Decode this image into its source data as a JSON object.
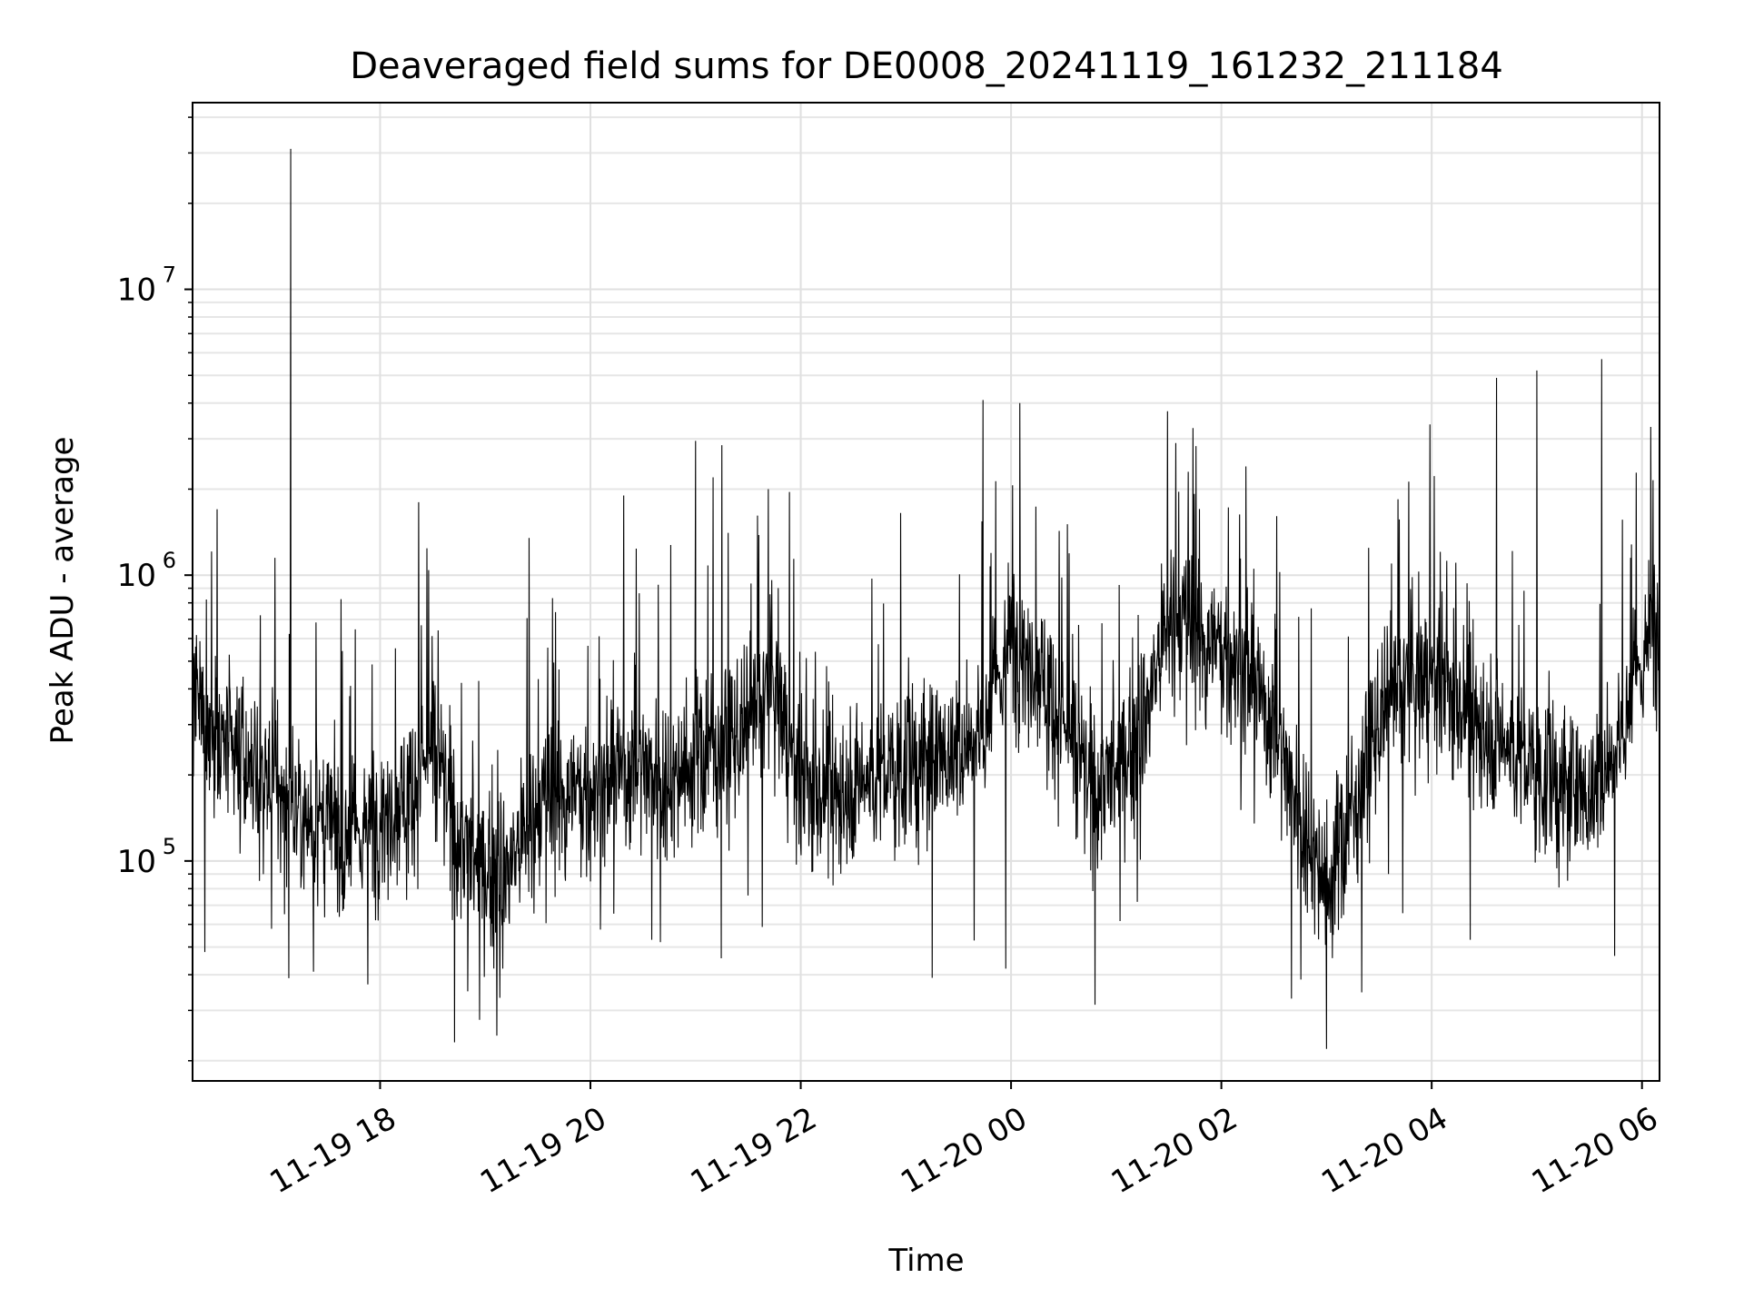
{
  "chart_data": {
    "type": "line",
    "title": "Deaveraged field sums for DE0008_20241119_161232_211184",
    "xlabel": "Time",
    "ylabel": "Peak ADU - average",
    "y_scale": "log",
    "ylim": [
      17000,
      45000000
    ],
    "xlim": [
      "2024-11-19 16:13",
      "2024-11-20 06:10"
    ],
    "x_ticks": [
      {
        "value": "2024-11-19 18:00",
        "label": "11-19 18"
      },
      {
        "value": "2024-11-19 20:00",
        "label": "11-19 20"
      },
      {
        "value": "2024-11-19 22:00",
        "label": "11-19 22"
      },
      {
        "value": "2024-11-20 00:00",
        "label": "11-20 00"
      },
      {
        "value": "2024-11-20 02:00",
        "label": "11-20 02"
      },
      {
        "value": "2024-11-20 04:00",
        "label": "11-20 04"
      },
      {
        "value": "2024-11-20 06:00",
        "label": "11-20 06"
      }
    ],
    "y_ticks": [
      {
        "value": 100000,
        "base": "10",
        "exp": "5"
      },
      {
        "value": 1000000,
        "base": "10",
        "exp": "6"
      },
      {
        "value": 10000000,
        "base": "10",
        "exp": "7"
      }
    ],
    "grid": true,
    "minor_grid": true,
    "line_color": "#000000",
    "series": [
      {
        "x": [
          "2024-11-19 16:13",
          "2024-11-19 16:30",
          "2024-11-19 16:45",
          "2024-11-19 17:00",
          "2024-11-19 17:15",
          "2024-11-19 17:30",
          "2024-11-19 17:45",
          "2024-11-19 18:00",
          "2024-11-19 18:15",
          "2024-11-19 18:30",
          "2024-11-19 18:45",
          "2024-11-19 19:00",
          "2024-11-19 19:15",
          "2024-11-19 19:30",
          "2024-11-19 19:45",
          "2024-11-19 20:00",
          "2024-11-19 20:15",
          "2024-11-19 20:30",
          "2024-11-19 20:45",
          "2024-11-19 21:00",
          "2024-11-19 21:15",
          "2024-11-19 21:30",
          "2024-11-19 21:45",
          "2024-11-19 22:00",
          "2024-11-19 22:15",
          "2024-11-19 22:30",
          "2024-11-19 22:45",
          "2024-11-19 23:00",
          "2024-11-19 23:15",
          "2024-11-19 23:30",
          "2024-11-19 23:45",
          "2024-11-20 00:00",
          "2024-11-20 00:15",
          "2024-11-20 00:30",
          "2024-11-20 00:45",
          "2024-11-20 01:00",
          "2024-11-20 01:15",
          "2024-11-20 01:30",
          "2024-11-20 01:45",
          "2024-11-20 02:00",
          "2024-11-20 02:15",
          "2024-11-20 02:30",
          "2024-11-20 02:45",
          "2024-11-20 03:00",
          "2024-11-20 03:15",
          "2024-11-20 03:30",
          "2024-11-20 03:45",
          "2024-11-20 04:00",
          "2024-11-20 04:15",
          "2024-11-20 04:30",
          "2024-11-20 04:45",
          "2024-11-20 05:00",
          "2024-11-20 05:15",
          "2024-11-20 05:30",
          "2024-11-20 05:45",
          "2024-11-20 06:00",
          "2024-11-20 06:10"
        ],
        "y": [
          350000,
          250000,
          200000,
          180000,
          150000,
          130000,
          120000,
          150000,
          170000,
          250000,
          120000,
          90000,
          100000,
          150000,
          180000,
          170000,
          200000,
          220000,
          190000,
          230000,
          250000,
          280000,
          420000,
          180000,
          170000,
          190000,
          200000,
          210000,
          230000,
          250000,
          300000,
          600000,
          500000,
          300000,
          180000,
          200000,
          300000,
          700000,
          650000,
          550000,
          450000,
          300000,
          150000,
          80000,
          150000,
          300000,
          400000,
          450000,
          350000,
          300000,
          250000,
          200000,
          180000,
          170000,
          250000,
          500000,
          700000
        ],
        "spikes": [
          {
            "x": "2024-11-19 16:27",
            "y": 1700000
          },
          {
            "x": "2024-11-19 17:00",
            "y": 1150000
          },
          {
            "x": "2024-11-19 17:09",
            "y": 31000000
          },
          {
            "x": "2024-11-19 18:22",
            "y": 1800000
          },
          {
            "x": "2024-11-19 19:25",
            "y": 1350000
          },
          {
            "x": "2024-11-19 20:19",
            "y": 1900000
          },
          {
            "x": "2024-11-19 21:00",
            "y": 2950000
          },
          {
            "x": "2024-11-19 21:10",
            "y": 2200000
          },
          {
            "x": "2024-11-19 21:15",
            "y": 2850000
          },
          {
            "x": "2024-11-19 22:57",
            "y": 1650000
          },
          {
            "x": "2024-11-19 23:44",
            "y": 4100000
          },
          {
            "x": "2024-11-20 00:05",
            "y": 4000000
          },
          {
            "x": "2024-11-20 01:34",
            "y": 2900000
          },
          {
            "x": "2024-11-20 02:14",
            "y": 2400000
          },
          {
            "x": "2024-11-20 04:37",
            "y": 4900000
          },
          {
            "x": "2024-11-20 05:00",
            "y": 5200000
          },
          {
            "x": "2024-11-20 05:37",
            "y": 5700000
          },
          {
            "x": "2024-11-20 06:05",
            "y": 3300000
          }
        ],
        "dips": [
          {
            "x": "2024-11-19 16:20",
            "y": 48000
          },
          {
            "x": "2024-11-19 17:22",
            "y": 41000
          },
          {
            "x": "2024-11-19 17:53",
            "y": 37000
          },
          {
            "x": "2024-11-19 18:50",
            "y": 35000
          },
          {
            "x": "2024-11-19 19:10",
            "y": 42000
          },
          {
            "x": "2024-11-19 20:35",
            "y": 53000
          },
          {
            "x": "2024-11-19 23:15",
            "y": 39000
          },
          {
            "x": "2024-11-19 23:57",
            "y": 42000
          },
          {
            "x": "2024-11-20 02:40",
            "y": 33000
          },
          {
            "x": "2024-11-20 03:00",
            "y": 22000
          },
          {
            "x": "2024-11-20 04:22",
            "y": 53000
          }
        ]
      }
    ]
  }
}
